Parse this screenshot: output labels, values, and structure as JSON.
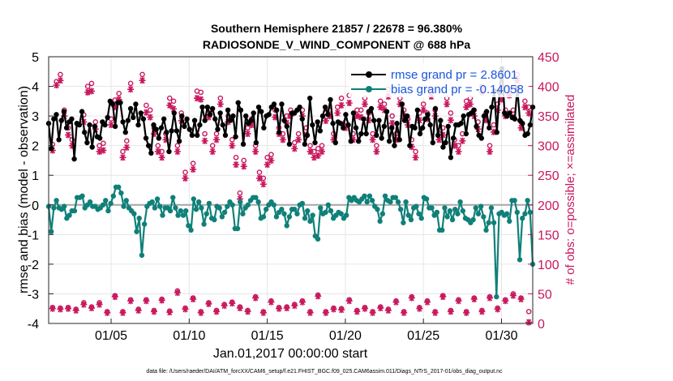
{
  "chart_data": {
    "type": "line",
    "title": "Southern Hemisphere 21857 / 22678 = 96.380%",
    "subtitle": "RADIOSONDE_V_WIND_COMPONENT @ 688 hPa",
    "xlabel": "Jan.01,2017 00:00:00 start",
    "ylabel_left": "rmse and bias (model - observation)",
    "ylabel_right": "# of obs: o=possible; ×=assimilated",
    "ylim_left": [
      -4,
      5
    ],
    "ylim_right": [
      0,
      450
    ],
    "xlim": [
      1,
      32
    ],
    "yticks_left": [
      "-4",
      "-3",
      "-2",
      "-1",
      "0",
      "1",
      "2",
      "3",
      "4",
      "5"
    ],
    "yticks_right": [
      "0",
      "50",
      "100",
      "150",
      "200",
      "250",
      "300",
      "350",
      "400",
      "450"
    ],
    "xticks": [
      {
        "x": 5,
        "label": "01/05"
      },
      {
        "x": 10,
        "label": "01/10"
      },
      {
        "x": 15,
        "label": "01/15"
      },
      {
        "x": 20,
        "label": "01/20"
      },
      {
        "x": 25,
        "label": "01/25"
      },
      {
        "x": 30,
        "label": "01/30"
      }
    ],
    "legend_position": "top-right",
    "grid": true,
    "footnote": "data file: /Users/raeder/DAI/ATM_forcXX/CAM6_setup/f.e21.FHIST_BGC.f09_025.CAM6assim.011/Diags_NTrS_2017-01/obs_diag_output.nc",
    "series": [
      {
        "name": "rmse grand pr = 2.8601",
        "color": "#000000",
        "marker": "filled-circle",
        "values": [
          2.75,
          1.9,
          2.9,
          3.05,
          2.2,
          2.85,
          3.15,
          2.6,
          2.8,
          2.9,
          1.55,
          2.75,
          2.7,
          3.15,
          2.45,
          2.1,
          2.7,
          1.95,
          2.65,
          2.3,
          2.25,
          2.8,
          2.7,
          2.95,
          3.5,
          3.4,
          2.65,
          3.45,
          3.45,
          2.8,
          2.45,
          2.85,
          3.25,
          2.95,
          3.4,
          2.7,
          3.1,
          2.9,
          2.25,
          2.0,
          1.75,
          2.7,
          2.55,
          2.25,
          2.6,
          2.9,
          2.45,
          1.8,
          2.5,
          3.1,
          2.5,
          2.15,
          3.0,
          2.65,
          2.9,
          2.55,
          2.35,
          2.85,
          2.35,
          2.7,
          3.3,
          2.85,
          3.3,
          3.05,
          3.25,
          2.9,
          2.55,
          3.1,
          2.7,
          2.35,
          3.2,
          2.85,
          3.0,
          2.3,
          3.45,
          3.2,
          2.05,
          3.0,
          2.75,
          2.85,
          3.1,
          2.1,
          3.3,
          3.15,
          2.6,
          3.0,
          3.05,
          3.3,
          3.4,
          3.2,
          2.45,
          3.4,
          2.85,
          2.65,
          2.05,
          3.1,
          3.1,
          3.2,
          3.3,
          2.9,
          2.05,
          2.35,
          3.6,
          2.7,
          2.1,
          2.8,
          2.5,
          3.0,
          3.3,
          3.05,
          3.55,
          2.75,
          2.1,
          2.8,
          2.75,
          2.6,
          3.05,
          2.7,
          2.15,
          3.1,
          2.6,
          2.15,
          2.4,
          2.9,
          2.4,
          3.15,
          3.25,
          2.85,
          2.35,
          2.85,
          2.25,
          2.65,
          3.15,
          2.15,
          2.6,
          2.0,
          2.75,
          2.2,
          3.4,
          2.85,
          3.0,
          2.0,
          2.65,
          2.6,
          3.2,
          2.4,
          2.6,
          2.9,
          3.05,
          2.7,
          2.1,
          3.25,
          2.35,
          2.85,
          1.95,
          2.1,
          2.65,
          1.6,
          2.25,
          2.7,
          2.7,
          2.75,
          3.0,
          2.4,
          3.05,
          3.1,
          3.2,
          2.65,
          2.35,
          2.25,
          3.0,
          3.15,
          2.6,
          3.3,
          3.85,
          2.45,
          3.8,
          4.6,
          3.1,
          3.0,
          3.1,
          2.95,
          2.9,
          3.95,
          2.85,
          2.75,
          2.35,
          2.4,
          2.7,
          3.3
        ]
      },
      {
        "name": "bias grand pr = -0.14058",
        "color": "#0f8079",
        "marker": "filled-circle",
        "values": [
          -0.05,
          -0.9,
          -0.1,
          0.15,
          -0.1,
          -0.15,
          -0.05,
          -0.45,
          -0.35,
          -0.2,
          -0.2,
          0.25,
          0.25,
          0.3,
          -0.1,
          0.0,
          0.1,
          -0.05,
          -0.05,
          -0.15,
          -0.1,
          0.0,
          0.15,
          -0.2,
          0.05,
          0.3,
          0.6,
          0.6,
          0.4,
          -0.05,
          0.15,
          -0.1,
          -0.2,
          -0.3,
          -0.9,
          -0.45,
          -1.7,
          -0.65,
          -0.05,
          0.05,
          0.1,
          -0.1,
          0.2,
          -0.05,
          -0.35,
          -0.1,
          -0.1,
          -0.2,
          0.25,
          -0.1,
          -0.35,
          -0.2,
          -0.35,
          -0.2,
          -0.7,
          -0.85,
          0.2,
          -0.15,
          0.1,
          -0.1,
          -0.65,
          -0.3,
          0.05,
          -0.45,
          -0.5,
          -0.05,
          -0.1,
          -0.4,
          -0.25,
          -0.05,
          0.1,
          0.0,
          -0.8,
          -0.8,
          0.1,
          -0.3,
          -0.1,
          0.0,
          0.15,
          0.25,
          0.25,
          0.1,
          -0.45,
          -0.4,
          -0.15,
          0.0,
          0.1,
          0.0,
          -0.4,
          -0.25,
          -0.15,
          -0.3,
          -0.7,
          -0.4,
          -0.15,
          -0.15,
          -0.3,
          0.0,
          0.05,
          -0.45,
          -0.2,
          -0.55,
          -0.35,
          -1.05,
          -1.15,
          -0.1,
          -0.3,
          -0.25,
          0.0,
          -0.2,
          -0.45,
          -0.35,
          -0.25,
          -0.3,
          -0.45,
          -0.35,
          0.25,
          0.15,
          0.25,
          0.15,
          0.1,
          0.2,
          0.3,
          0.1,
          0.3,
          0.15,
          -0.05,
          -0.15,
          -0.55,
          -0.3,
          0.3,
          0.15,
          0.1,
          0.25,
          0.25,
          0.1,
          -0.15,
          -0.6,
          0.1,
          -0.35,
          -0.5,
          -0.1,
          -0.05,
          -0.3,
          -0.45,
          0.25,
          0.2,
          -0.1,
          -0.1,
          -0.35,
          -0.25,
          -0.85,
          -0.85,
          -0.1,
          -0.4,
          -0.2,
          -0.5,
          -0.15,
          -0.3,
          0.1,
          -0.2,
          -0.45,
          -0.5,
          -0.6,
          -0.5,
          -0.1,
          -0.3,
          -0.05,
          -0.4,
          -0.85,
          -0.6,
          -0.1,
          -0.6,
          -3.1,
          -0.3,
          -0.25,
          -0.35,
          -0.3,
          -0.55,
          0.15,
          0.15,
          -0.25,
          -1.85,
          -0.45,
          -0.3,
          0.15,
          -0.25,
          -2.0
        ]
      },
      {
        "name": "obs possible",
        "axis": "right",
        "color": "#c8175d",
        "marker": "open-circle",
        "x": [
          1.25,
          1.5,
          1.75,
          2.0,
          2.25,
          2.5,
          3.25,
          3.5,
          3.75,
          4.0,
          4.25,
          4.5,
          5.0,
          5.25,
          5.5,
          5.75,
          6.0,
          6.25,
          7.0,
          7.25,
          7.5,
          7.75,
          8.0,
          8.25,
          8.5,
          8.75,
          9.0,
          9.25,
          9.5,
          9.75,
          10.25,
          10.5,
          10.75,
          11.0,
          11.25,
          11.5,
          11.75,
          12.0,
          12.5,
          12.75,
          13.0,
          13.25,
          13.5,
          13.75,
          14.0,
          14.25,
          14.5,
          14.75,
          15.0,
          15.25,
          15.5,
          15.75,
          16.0,
          16.25,
          16.5,
          16.75,
          17.0,
          17.25,
          17.5,
          17.75,
          18.0,
          18.25,
          18.5,
          18.75,
          19.0,
          19.25,
          19.5,
          19.75,
          20.0,
          20.25,
          20.5,
          20.75,
          21.0,
          21.25,
          21.5,
          21.75,
          22.0,
          22.25,
          22.5,
          22.75,
          23.0,
          23.25,
          23.5,
          23.75,
          24.0,
          24.25,
          24.5,
          24.75,
          25.0,
          25.25,
          25.5,
          25.75,
          26.0,
          26.25,
          26.5,
          26.75,
          27.0,
          27.25,
          27.5,
          27.75,
          28.0,
          28.25,
          28.5,
          28.75,
          29.0,
          29.25,
          29.5,
          29.75,
          30.0,
          30.25,
          30.5,
          30.75,
          31.0,
          31.25,
          31.5,
          31.75
        ],
        "values": [
          302,
          408,
          420,
          360,
          330,
          310,
          352,
          400,
          405,
          340,
          300,
          304,
          345,
          377,
          388,
          290,
          308,
          405,
          420,
          368,
          360,
          330,
          300,
          290,
          320,
          380,
          375,
          300,
          355,
          255,
          270,
          392,
          390,
          320,
          360,
          300,
          320,
          380,
          350,
          310,
          280,
          220,
          275,
          330,
          345,
          300,
          255,
          245,
          280,
          285,
          360,
          330,
          320,
          350,
          360,
          305,
          320,
          360,
          330,
          300,
          290,
          295,
          300,
          355,
          360,
          320,
          365,
          380,
          340,
          385,
          320,
          360,
          360,
          380,
          355,
          320,
          300,
          375,
          370,
          395,
          350,
          320,
          380,
          360,
          345,
          310,
          290,
          355,
          370,
          355,
          395,
          360,
          320,
          330,
          380,
          355,
          310,
          300,
          320,
          375,
          380,
          360,
          340,
          400,
          355,
          300,
          335,
          370,
          390,
          360,
          395,
          360,
          420,
          340,
          375,
          365
        ]
      },
      {
        "name": "obs assimilated",
        "axis": "right",
        "color": "#c8175d",
        "marker": "asterisk",
        "x": [
          1.25,
          1.5,
          1.75,
          2.0,
          2.25,
          2.5,
          3.25,
          3.5,
          3.75,
          4.0,
          4.25,
          4.5,
          5.0,
          5.25,
          5.5,
          5.75,
          6.0,
          6.25,
          7.0,
          7.25,
          7.5,
          7.75,
          8.0,
          8.25,
          8.5,
          8.75,
          9.0,
          9.25,
          9.5,
          9.75,
          10.25,
          10.5,
          10.75,
          11.0,
          11.25,
          11.5,
          11.75,
          12.0,
          12.5,
          12.75,
          13.0,
          13.25,
          13.5,
          13.75,
          14.0,
          14.25,
          14.5,
          14.75,
          15.0,
          15.25,
          15.5,
          15.75,
          16.0,
          16.25,
          16.5,
          16.75,
          17.0,
          17.25,
          17.5,
          17.75,
          18.0,
          18.25,
          18.5,
          18.75,
          19.0,
          19.25,
          19.5,
          19.75,
          20.0,
          20.25,
          20.5,
          20.75,
          21.0,
          21.25,
          21.5,
          21.75,
          22.0,
          22.25,
          22.5,
          22.75,
          23.0,
          23.25,
          23.5,
          23.75,
          24.0,
          24.25,
          24.5,
          24.75,
          25.0,
          25.25,
          25.5,
          25.75,
          26.0,
          26.25,
          26.5,
          26.75,
          27.0,
          27.25,
          27.5,
          27.75,
          28.0,
          28.25,
          28.5,
          28.75,
          29.0,
          29.25,
          29.5,
          29.75,
          30.0,
          30.25,
          30.5,
          30.75,
          31.0,
          31.25,
          31.5,
          31.75
        ],
        "values": [
          292,
          402,
          410,
          350,
          318,
          300,
          340,
          390,
          392,
          328,
          290,
          292,
          335,
          365,
          378,
          280,
          297,
          395,
          410,
          356,
          348,
          320,
          290,
          280,
          310,
          368,
          362,
          290,
          342,
          245,
          260,
          380,
          378,
          308,
          348,
          290,
          310,
          370,
          340,
          300,
          268,
          210,
          265,
          320,
          335,
          290,
          245,
          235,
          268,
          275,
          348,
          320,
          310,
          338,
          350,
          295,
          310,
          350,
          318,
          290,
          280,
          283,
          290,
          342,
          350,
          310,
          355,
          368,
          330,
          372,
          310,
          350,
          348,
          370,
          343,
          310,
          290,
          365,
          360,
          383,
          338,
          310,
          370,
          350,
          335,
          298,
          280,
          343,
          360,
          345,
          383,
          350,
          310,
          318,
          370,
          343,
          300,
          290,
          308,
          365,
          370,
          350,
          328,
          390,
          343,
          290,
          323,
          360,
          378,
          350,
          385,
          348,
          410,
          330,
          365,
          355
        ]
      },
      {
        "name": "obs possible (low)",
        "axis": "right",
        "color": "#c8175d",
        "marker": "open-circle",
        "x": [
          1.25,
          1.75,
          2.25,
          2.75,
          3.25,
          3.75,
          4.25,
          4.75,
          5.25,
          5.75,
          6.25,
          6.75,
          7.25,
          7.75,
          8.25,
          8.75,
          9.25,
          9.75,
          10.25,
          10.75,
          11.25,
          11.75,
          12.25,
          12.75,
          13.25,
          13.75,
          14.25,
          14.75,
          15.25,
          15.75,
          16.25,
          16.75,
          17.25,
          17.75,
          18.25,
          18.75,
          19.25,
          19.75,
          20.25,
          20.75,
          21.25,
          21.75,
          22.25,
          22.75,
          23.25,
          23.75,
          24.25,
          24.75,
          25.25,
          25.75,
          26.25,
          26.75,
          27.25,
          27.75,
          28.25,
          28.75,
          29.25,
          29.75,
          30.25,
          30.75,
          31.25,
          31.75
        ],
        "values": [
          27,
          26,
          27,
          24,
          35,
          28,
          35,
          20,
          47,
          20,
          40,
          24,
          40,
          22,
          41,
          21,
          55,
          26,
          43,
          20,
          35,
          22,
          32,
          36,
          28,
          22,
          45,
          20,
          38,
          27,
          28,
          32,
          38,
          20,
          48,
          20,
          26,
          25,
          40,
          22,
          27,
          20,
          28,
          24,
          38,
          20,
          45,
          27,
          38,
          20,
          47,
          22,
          40,
          20,
          43,
          22,
          45,
          26,
          40,
          50,
          43,
          20
        ]
      },
      {
        "name": "obs assimilated (low)",
        "axis": "right",
        "color": "#c8175d",
        "marker": "asterisk",
        "x": [
          1.25,
          1.75,
          2.25,
          2.75,
          3.25,
          3.75,
          4.25,
          4.75,
          5.25,
          5.75,
          6.25,
          6.75,
          7.25,
          7.75,
          8.25,
          8.75,
          9.25,
          9.75,
          10.25,
          10.75,
          11.25,
          11.75,
          12.25,
          12.75,
          13.25,
          13.75,
          14.25,
          14.75,
          15.25,
          15.75,
          16.25,
          16.75,
          17.25,
          17.75,
          18.25,
          18.75,
          19.25,
          19.75,
          20.25,
          20.75,
          21.25,
          21.75,
          22.25,
          22.75,
          23.25,
          23.75,
          24.25,
          24.75,
          25.25,
          25.75,
          26.25,
          26.75,
          27.25,
          27.75,
          28.25,
          28.75,
          29.25,
          29.75,
          30.25,
          30.75,
          31.25,
          31.75
        ],
        "values": [
          25,
          24,
          25,
          22,
          32,
          26,
          32,
          18,
          45,
          18,
          38,
          22,
          38,
          20,
          39,
          19,
          52,
          24,
          41,
          18,
          33,
          20,
          30,
          34,
          26,
          20,
          43,
          18,
          36,
          25,
          26,
          30,
          36,
          18,
          46,
          18,
          24,
          23,
          38,
          20,
          25,
          18,
          26,
          22,
          36,
          18,
          43,
          25,
          36,
          18,
          45,
          20,
          38,
          18,
          41,
          20,
          43,
          24,
          38,
          47,
          41,
          2
        ]
      }
    ]
  }
}
